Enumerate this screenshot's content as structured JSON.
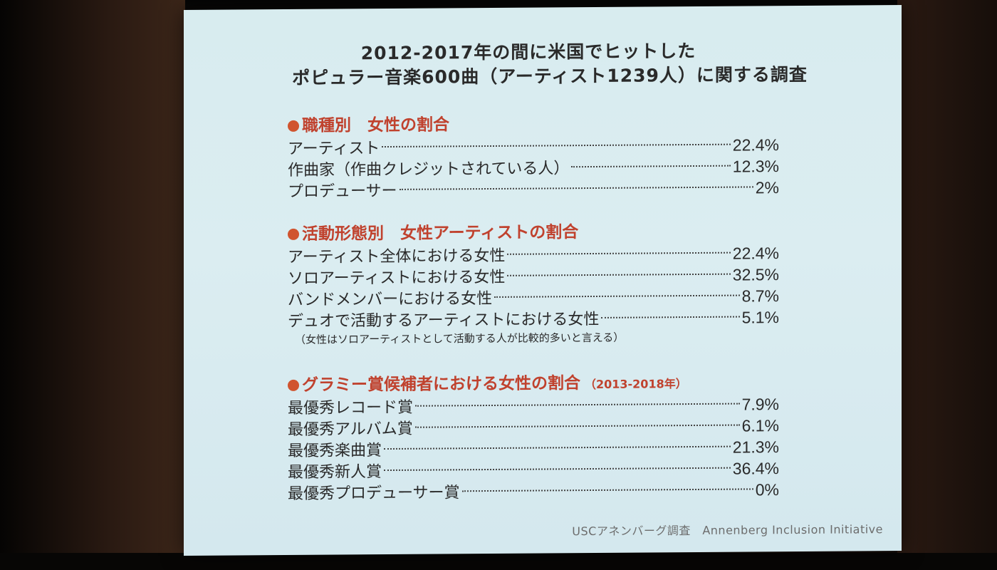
{
  "slide": {
    "title_line1": "2012-2017年の間に米国でヒットした",
    "title_line2": "ポピュラー音楽600曲（アーティスト1239人）に関する調査",
    "sections": [
      {
        "heading": "職種別　女性の割合",
        "rows": [
          {
            "label": "アーティスト",
            "value": "22.4%"
          },
          {
            "label": "作曲家（作曲クレジットされている人）",
            "value": "12.3%"
          },
          {
            "label": "プロデューサー",
            "value": "2%"
          }
        ]
      },
      {
        "heading": "活動形態別　女性アーティストの割合",
        "rows": [
          {
            "label": "アーティスト全体における女性",
            "value": "22.4%"
          },
          {
            "label": "ソロアーティストにおける女性",
            "value": "32.5%"
          },
          {
            "label": "バンドメンバーにおける女性",
            "value": "8.7%"
          },
          {
            "label": "デュオで活動するアーティストにおける女性",
            "value": "5.1%"
          }
        ],
        "note": "（女性はソロアーティストとして活動する人が比較的多いと言える）"
      },
      {
        "heading": "グラミー賞候補者における女性の割合",
        "heading_sub": "（2013-2018年）",
        "rows": [
          {
            "label": "最優秀レコード賞",
            "value": "7.9%"
          },
          {
            "label": "最優秀アルバム賞",
            "value": "6.1%"
          },
          {
            "label": "最優秀楽曲賞",
            "value": "21.3%"
          },
          {
            "label": "最優秀新人賞",
            "value": "36.4%"
          },
          {
            "label": "最優秀プロデューサー賞",
            "value": "0%"
          }
        ]
      }
    ],
    "footer": "USCアネンバーグ調査　Annenberg Inclusion Initiative"
  },
  "colors": {
    "screen_bg": "#d8ecef",
    "heading_red": "#c0422e",
    "bullet_orange": "#d0542f",
    "text_dark": "#2a2a2a",
    "footer_gray": "#6c6c6c"
  }
}
